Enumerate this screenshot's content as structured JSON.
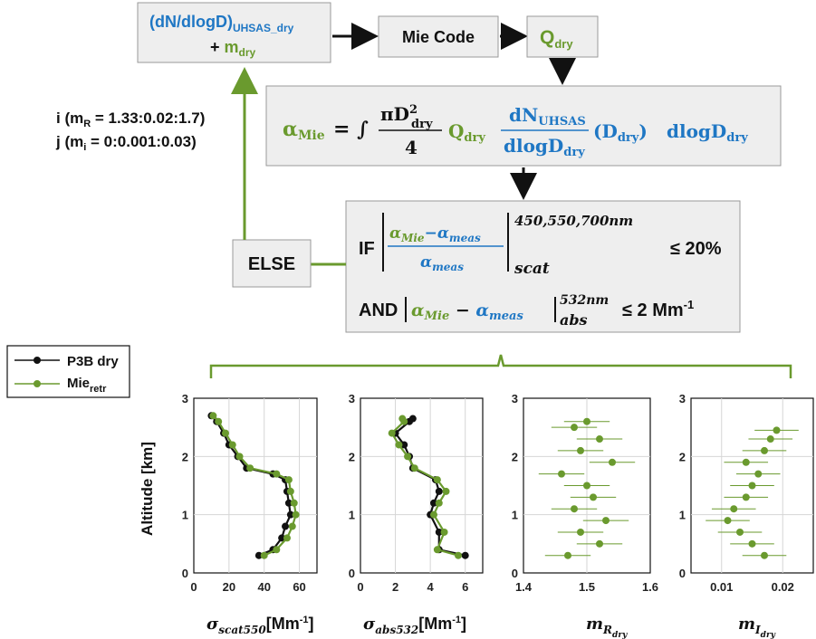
{
  "colors": {
    "blue": "#1f77c4",
    "green": "#6a9a2e",
    "black": "#111111",
    "box": "#eeeeee"
  },
  "flow": {
    "input_main": "(dN/dlogD)",
    "input_sub": "UHSAS_dry",
    "input_plus": "+ m",
    "input_plus_sub": "dry",
    "mie_code": "Mie Code",
    "q_main": "Q",
    "q_sub": "dry",
    "loop_label_i": "i (m",
    "loop_label_i_sub": "R",
    "loop_label_i_rest": " = 1.33:0.02:1.7)",
    "loop_label_j": "j (m",
    "loop_label_j_sub": "i",
    "loop_label_j_rest": " = 0:0.001:0.03)",
    "else": "ELSE",
    "eq_alpha": "α",
    "eq_alpha_sub": "Mie",
    "eq_rest_a": "= ∫",
    "eq_pi": "πD",
    "eq_pi_sup": "2",
    "eq_pi_sub": "dry",
    "eq_four": "4",
    "eq_q": "Q",
    "eq_q_sub": "dry",
    "eq_dn": "dN",
    "eq_dn_sub": "UHSAS",
    "eq_dlog": "dlogD",
    "eq_dlog_sub": "dry",
    "eq_paren": "(D",
    "eq_paren_sub": "dry",
    "eq_paren_end": ")",
    "eq_tail": "dlogD",
    "eq_tail_sub": "dry",
    "if_label": "IF",
    "if_num_a": "α",
    "if_num_a_sub": "Mie",
    "if_num_minus": "−α",
    "if_num_b_sub": "meas",
    "if_den": "α",
    "if_den_sub": "meas",
    "if_sup": "450,550,700nm",
    "if_subscript": "scat",
    "if_cond": "≤ 20%",
    "and_label": "AND",
    "and_a": "α",
    "and_a_sub": "Mie",
    "and_minus": " − ",
    "and_b": "α",
    "and_b_sub": "meas",
    "and_sup": "532nm",
    "and_subscript": "abs",
    "and_cond": "≤ 2 Mm",
    "and_cond_sup": "-1"
  },
  "legend": {
    "p3b_label": "P3B dry",
    "mie_label": "Mie",
    "mie_sub": "retr"
  },
  "chart_data": [
    {
      "type": "line",
      "ylabel": "Altitude [km]",
      "xlabel": "σ",
      "xlabel_sub": "scat550",
      "xlabel_unit": "[Mm",
      "xlabel_unit_sup": "-1",
      "xlabel_unit_end": "]",
      "xlim": [
        0,
        70
      ],
      "ylim": [
        0,
        3
      ],
      "xticks": [
        "0",
        "20",
        "40",
        "60"
      ],
      "xtick_values": [
        0,
        20,
        40,
        60
      ],
      "yticks": [
        "0",
        "1",
        "2",
        "3"
      ],
      "series": [
        {
          "name": "P3B dry",
          "y": [
            0.3,
            0.4,
            0.6,
            0.8,
            1.0,
            1.2,
            1.4,
            1.6,
            1.7,
            1.8,
            2.0,
            2.2,
            2.4,
            2.6,
            2.7
          ],
          "x": [
            37,
            45,
            50,
            52,
            55,
            54,
            53,
            52,
            45,
            30,
            25,
            20,
            17,
            13,
            10
          ]
        },
        {
          "name": "Mie retr",
          "y": [
            0.3,
            0.4,
            0.6,
            0.8,
            1.0,
            1.2,
            1.4,
            1.6,
            1.7,
            1.8,
            2.0,
            2.2,
            2.4,
            2.6,
            2.7
          ],
          "x": [
            40,
            47,
            53,
            56,
            58,
            57,
            55,
            54,
            47,
            32,
            26,
            22,
            18,
            14,
            11
          ]
        }
      ]
    },
    {
      "type": "line",
      "xlabel": "σ",
      "xlabel_sub": "abs532",
      "xlabel_unit": "[Mm",
      "xlabel_unit_sup": "-1",
      "xlabel_unit_end": "]",
      "xlim": [
        0,
        7
      ],
      "ylim": [
        0,
        3
      ],
      "xticks": [
        "0",
        "2",
        "4",
        "6"
      ],
      "xtick_values": [
        0,
        2,
        4,
        6
      ],
      "yticks": [
        "0",
        "1",
        "2",
        "3"
      ],
      "series": [
        {
          "name": "P3B dry",
          "y": [
            0.3,
            0.4,
            0.7,
            1.0,
            1.2,
            1.4,
            1.6,
            1.8,
            2.0,
            2.2,
            2.4,
            2.6,
            2.65
          ],
          "x": [
            6.0,
            4.5,
            4.5,
            4.0,
            4.2,
            4.5,
            4.3,
            3.0,
            2.8,
            2.5,
            2.0,
            2.8,
            3.0
          ]
        },
        {
          "name": "Mie retr",
          "y": [
            0.3,
            0.4,
            0.7,
            1.0,
            1.2,
            1.4,
            1.6,
            1.8,
            2.0,
            2.2,
            2.4,
            2.6,
            2.65
          ],
          "x": [
            5.6,
            4.4,
            4.8,
            4.2,
            4.5,
            4.9,
            4.4,
            3.1,
            2.7,
            2.2,
            1.8,
            2.5,
            2.4
          ]
        }
      ]
    },
    {
      "type": "scatter",
      "xlabel": "m",
      "xlabel_sub": "R",
      "xlabel_subsub": "dry",
      "xlim": [
        1.4,
        1.6
      ],
      "ylim": [
        0,
        3
      ],
      "xticks": [
        "1.4",
        "1.5",
        "1.6"
      ],
      "xtick_values": [
        1.4,
        1.5,
        1.6
      ],
      "yticks": [
        "0",
        "1",
        "2",
        "3"
      ],
      "series": [
        {
          "name": "Mie retr",
          "y": [
            0.3,
            0.5,
            0.7,
            0.9,
            1.1,
            1.3,
            1.5,
            1.7,
            1.9,
            2.1,
            2.3,
            2.5,
            2.6
          ],
          "x": [
            1.47,
            1.52,
            1.49,
            1.53,
            1.48,
            1.51,
            1.5,
            1.46,
            1.54,
            1.49,
            1.52,
            1.48,
            1.5
          ]
        }
      ]
    },
    {
      "type": "scatter",
      "xlabel": "m",
      "xlabel_sub": "I",
      "xlabel_subsub": "dry",
      "xlim": [
        0.005,
        0.025
      ],
      "ylim": [
        0,
        3
      ],
      "xticks": [
        "0.01",
        "0.02"
      ],
      "xtick_values": [
        0.01,
        0.02
      ],
      "yticks": [
        "0",
        "1",
        "2",
        "3"
      ],
      "series": [
        {
          "name": "Mie retr",
          "y": [
            0.3,
            0.5,
            0.7,
            0.9,
            1.1,
            1.3,
            1.5,
            1.7,
            1.9,
            2.1,
            2.3,
            2.45
          ],
          "x": [
            0.017,
            0.015,
            0.013,
            0.011,
            0.012,
            0.014,
            0.015,
            0.016,
            0.014,
            0.017,
            0.018,
            0.019
          ]
        }
      ]
    }
  ]
}
